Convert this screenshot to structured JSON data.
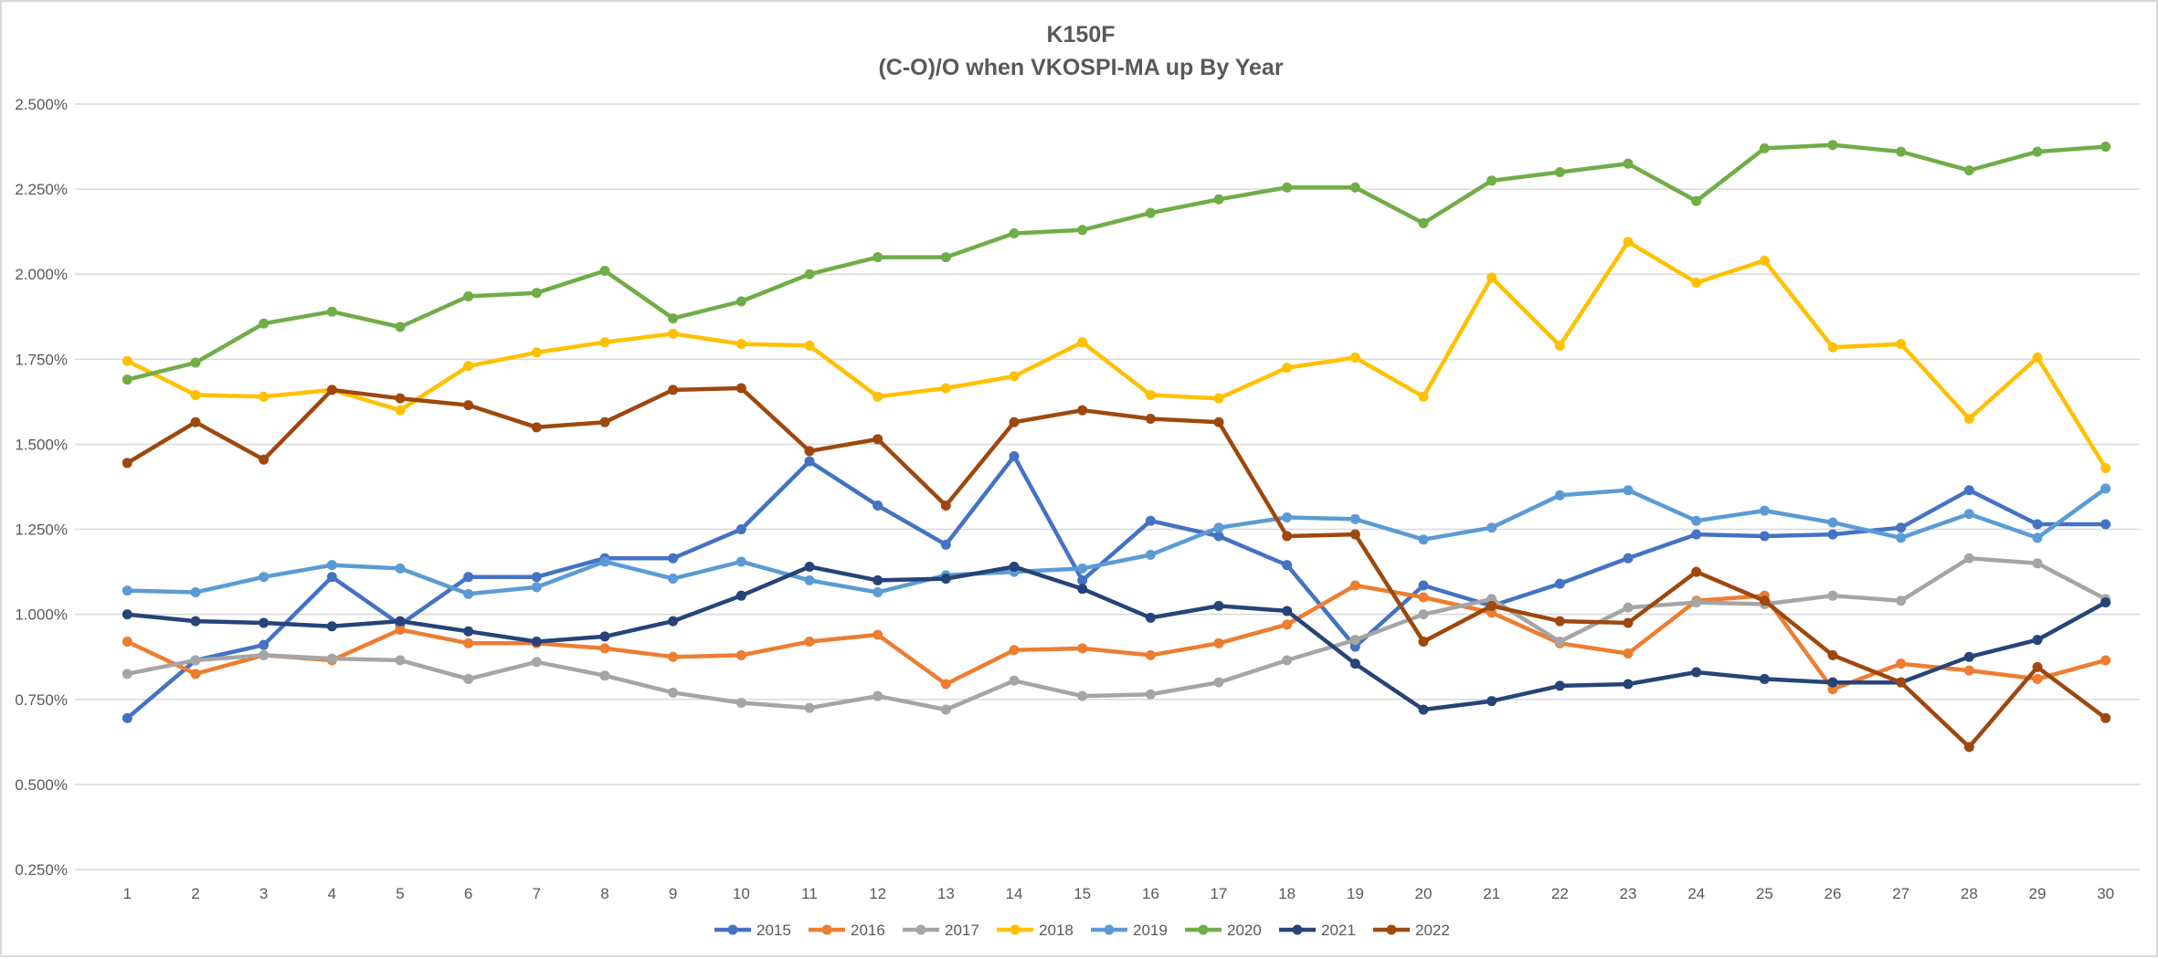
{
  "chart_data": {
    "type": "line",
    "title": "K150F",
    "subtitle": "(C-O)/O when VKOSPI-MA up By Year",
    "xlabel": "",
    "ylabel": "",
    "x": [
      1,
      2,
      3,
      4,
      5,
      6,
      7,
      8,
      9,
      10,
      11,
      12,
      13,
      14,
      15,
      16,
      17,
      18,
      19,
      20,
      21,
      22,
      23,
      24,
      25,
      26,
      27,
      28,
      29,
      30
    ],
    "ylim": [
      0.25,
      2.5
    ],
    "y_ticks": [
      0.25,
      0.5,
      0.75,
      1.0,
      1.25,
      1.5,
      1.75,
      2.0,
      2.25,
      2.5
    ],
    "y_tick_labels": [
      "0.250%",
      "0.500%",
      "0.750%",
      "1.000%",
      "1.250%",
      "1.500%",
      "1.750%",
      "2.000%",
      "2.250%",
      "2.500%"
    ],
    "y_unit": "%",
    "grid": true,
    "legend_position": "bottom",
    "series": [
      {
        "name": "2015",
        "color": "#4472C4",
        "values": [
          0.695,
          0.865,
          0.91,
          1.11,
          0.97,
          1.11,
          1.11,
          1.165,
          1.165,
          1.25,
          1.45,
          1.32,
          1.205,
          1.465,
          1.1,
          1.275,
          1.23,
          1.145,
          0.905,
          1.085,
          1.025,
          1.09,
          1.165,
          1.235,
          1.23,
          1.235,
          1.255,
          1.365,
          1.265,
          1.265
        ]
      },
      {
        "name": "2016",
        "color": "#ED7D31",
        "values": [
          0.92,
          0.825,
          0.88,
          0.865,
          0.955,
          0.915,
          0.915,
          0.9,
          0.875,
          0.88,
          0.92,
          0.94,
          0.795,
          0.895,
          0.9,
          0.88,
          0.915,
          0.97,
          1.085,
          1.05,
          1.005,
          0.915,
          0.885,
          1.04,
          1.055,
          0.78,
          0.855,
          0.835,
          0.81,
          0.865
        ]
      },
      {
        "name": "2017",
        "color": "#A5A5A5",
        "values": [
          0.825,
          0.865,
          0.88,
          0.87,
          0.865,
          0.81,
          0.86,
          0.82,
          0.77,
          0.74,
          0.725,
          0.76,
          0.72,
          0.805,
          0.76,
          0.765,
          0.8,
          0.865,
          0.925,
          1.0,
          1.045,
          0.92,
          1.02,
          1.035,
          1.03,
          1.055,
          1.04,
          1.165,
          1.15,
          1.045
        ]
      },
      {
        "name": "2018",
        "color": "#FFC000",
        "values": [
          1.745,
          1.645,
          1.64,
          1.66,
          1.6,
          1.73,
          1.77,
          1.8,
          1.825,
          1.795,
          1.79,
          1.64,
          1.665,
          1.7,
          1.8,
          1.645,
          1.635,
          1.725,
          1.755,
          1.64,
          1.99,
          1.79,
          2.095,
          1.975,
          2.04,
          1.785,
          1.795,
          1.575,
          1.755,
          1.43
        ]
      },
      {
        "name": "2019",
        "color": "#5B9BD5",
        "values": [
          1.07,
          1.065,
          1.11,
          1.145,
          1.135,
          1.06,
          1.08,
          1.155,
          1.105,
          1.155,
          1.1,
          1.065,
          1.115,
          1.125,
          1.135,
          1.175,
          1.255,
          1.285,
          1.28,
          1.22,
          1.255,
          1.35,
          1.365,
          1.275,
          1.305,
          1.27,
          1.225,
          1.295,
          1.225,
          1.37
        ]
      },
      {
        "name": "2020",
        "color": "#70AD47",
        "values": [
          1.69,
          1.74,
          1.855,
          1.89,
          1.845,
          1.935,
          1.945,
          2.01,
          1.87,
          1.92,
          2.0,
          2.05,
          2.05,
          2.12,
          2.13,
          2.18,
          2.22,
          2.255,
          2.255,
          2.15,
          2.275,
          2.3,
          2.325,
          2.215,
          2.37,
          2.38,
          2.36,
          2.305,
          2.36,
          2.375
        ]
      },
      {
        "name": "2021",
        "color": "#264478",
        "values": [
          1.0,
          0.98,
          0.975,
          0.965,
          0.98,
          0.95,
          0.92,
          0.935,
          0.98,
          1.055,
          1.14,
          1.1,
          1.105,
          1.14,
          1.075,
          0.99,
          1.025,
          1.01,
          0.855,
          0.72,
          0.745,
          0.79,
          0.795,
          0.83,
          0.81,
          0.8,
          0.8,
          0.875,
          0.925,
          1.035
        ]
      },
      {
        "name": "2022",
        "color": "#9E480E",
        "values": [
          1.445,
          1.565,
          1.455,
          1.66,
          1.635,
          1.615,
          1.55,
          1.565,
          1.66,
          1.665,
          1.48,
          1.515,
          1.32,
          1.565,
          1.6,
          1.575,
          1.565,
          1.23,
          1.235,
          0.92,
          1.025,
          0.98,
          0.975,
          1.125,
          1.04,
          0.88,
          0.8,
          0.61,
          0.845,
          0.695
        ]
      }
    ]
  }
}
